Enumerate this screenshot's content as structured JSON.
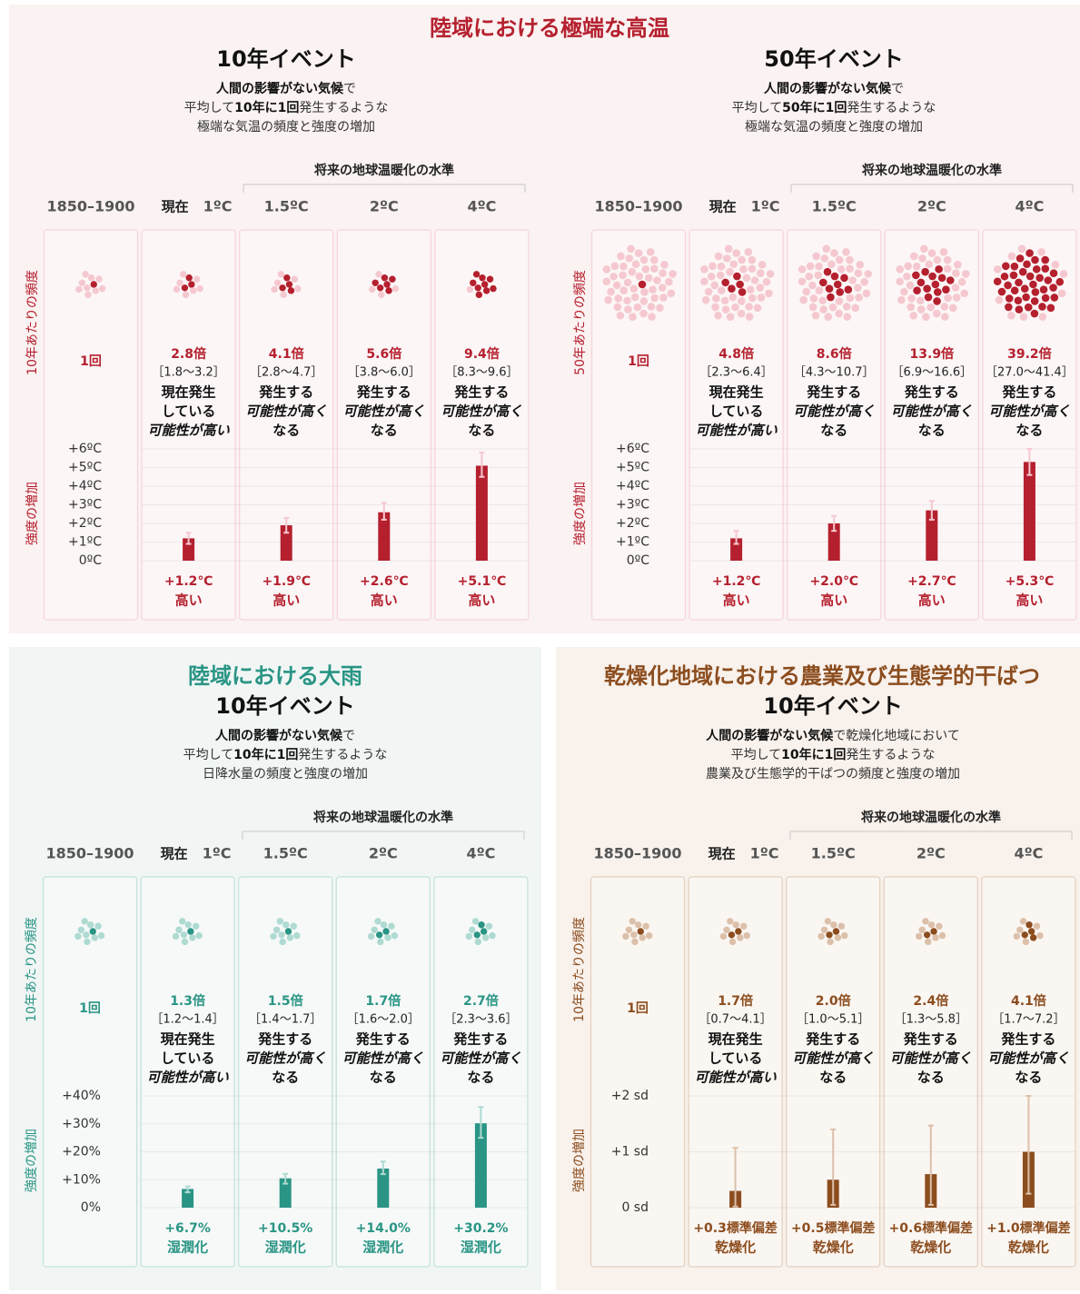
{
  "panels": [
    {
      "title": "陸域における極端な高温",
      "color": "#b5202e",
      "light_color": "#f5c8d0",
      "events": [
        {
          "heading": "10年イベント",
          "description": [
            [
              {
                "text": "人間の影響がない気候",
                "bold": true
              },
              {
                "text": "で"
              }
            ],
            [
              {
                "text": "平均して"
              },
              {
                "text": "10年に1回",
                "bold": true
              },
              {
                "text": "発生するような"
              }
            ],
            [
              {
                "text": "極端な気温の頻度と強度の増加"
              }
            ]
          ],
          "future_label": "将来の地球温暖化の水準",
          "levels": [
            {
              "label": "1850–1900"
            },
            {
              "label": "1ºC",
              "note": "現在"
            },
            {
              "label": "1.5ºC"
            },
            {
              "label": "2ºC"
            },
            {
              "label": "4ºC"
            }
          ],
          "frequency_axis": "10年あたりの頻度",
          "intensity_axis": "強度の増加",
          "frequency": {
            "values": [
              1,
              2.8,
              4.1,
              5.6,
              9.4
            ],
            "value_labels": [
              "1回",
              "2.8倍",
              "4.1倍",
              "5.6倍",
              "9.4倍"
            ]
          },
          "ranges": [
            "［1.8～3.2］",
            "［2.8～4.7］",
            "［3.8～6.0］",
            "［8.3～9.6］"
          ],
          "likelihood": [
            [
              {
                "text": "現在発生"
              },
              {
                "text": "している"
              },
              {
                "text": "可能性が高い",
                "italic": true
              }
            ],
            [
              {
                "text": "発生する"
              },
              {
                "text": "可能性が高く",
                "italic": true
              },
              {
                "text": "なる"
              }
            ],
            [
              {
                "text": "発生する"
              },
              {
                "text": "可能性が高く",
                "italic": true
              },
              {
                "text": "なる"
              }
            ],
            [
              {
                "text": "発生する"
              },
              {
                "text": "可能性が高く",
                "italic": true
              },
              {
                "text": "なる"
              }
            ]
          ],
          "chart": {
            "type": "bar",
            "ylim": [
              0,
              6
            ],
            "yticks": [
              {
                "value": 0,
                "label": "0ºC"
              },
              {
                "value": 1,
                "label": "+1ºC"
              },
              {
                "value": 2,
                "label": "+2ºC"
              },
              {
                "value": 3,
                "label": "+3ºC"
              },
              {
                "value": 4,
                "label": "+4ºC"
              },
              {
                "value": 5,
                "label": "+5ºC"
              },
              {
                "value": 6,
                "label": "+6ºC"
              }
            ],
            "values": [
              1.2,
              1.9,
              2.6,
              5.1
            ],
            "value_labels": [
              "+1.2℃",
              "+1.9℃",
              "+2.6℃",
              "+5.1℃"
            ],
            "errors": [
              [
                0.9,
                1.5
              ],
              [
                1.5,
                2.3
              ],
              [
                2.2,
                3.1
              ],
              [
                4.5,
                5.8
              ]
            ],
            "outcome": "高い"
          }
        },
        {
          "heading": "50年イベント",
          "description": [
            [
              {
                "text": "人間の影響がない気候",
                "bold": true
              },
              {
                "text": "で"
              }
            ],
            [
              {
                "text": "平均して"
              },
              {
                "text": "50年に1回",
                "bold": true
              },
              {
                "text": "発生するような"
              }
            ],
            [
              {
                "text": "極端な気温の頻度と強度の増加"
              }
            ]
          ],
          "future_label": "将来の地球温暖化の水準",
          "levels": [
            {
              "label": "1850–1900"
            },
            {
              "label": "1ºC",
              "note": "現在"
            },
            {
              "label": "1.5ºC"
            },
            {
              "label": "2ºC"
            },
            {
              "label": "4ºC"
            }
          ],
          "frequency_axis": "50年あたりの頻度",
          "intensity_axis": "強度の増加",
          "frequency": {
            "values": [
              1,
              4.8,
              8.6,
              13.9,
              39.2
            ],
            "value_labels": [
              "1回",
              "4.8倍",
              "8.6倍",
              "13.9倍",
              "39.2倍"
            ]
          },
          "ranges": [
            "［2.3～6.4］",
            "［4.3～10.7］",
            "［6.9～16.6］",
            "［27.0～41.4］"
          ],
          "likelihood": [
            [
              {
                "text": "現在発生"
              },
              {
                "text": "している"
              },
              {
                "text": "可能性が高い",
                "italic": true
              }
            ],
            [
              {
                "text": "発生する"
              },
              {
                "text": "可能性が高く",
                "italic": true
              },
              {
                "text": "なる"
              }
            ],
            [
              {
                "text": "発生する"
              },
              {
                "text": "可能性が高く",
                "italic": true
              },
              {
                "text": "なる"
              }
            ],
            [
              {
                "text": "発生する"
              },
              {
                "text": "可能性が高く",
                "italic": true
              },
              {
                "text": "なる"
              }
            ]
          ],
          "chart": {
            "type": "bar",
            "ylim": [
              0,
              6
            ],
            "yticks": [
              {
                "value": 0,
                "label": "0ºC"
              },
              {
                "value": 1,
                "label": "+1ºC"
              },
              {
                "value": 2,
                "label": "+2ºC"
              },
              {
                "value": 3,
                "label": "+3ºC"
              },
              {
                "value": 4,
                "label": "+4ºC"
              },
              {
                "value": 5,
                "label": "+5ºC"
              },
              {
                "value": 6,
                "label": "+6ºC"
              }
            ],
            "values": [
              1.2,
              2.0,
              2.7,
              5.3
            ],
            "value_labels": [
              "+1.2℃",
              "+2.0℃",
              "+2.7℃",
              "+5.3℃"
            ],
            "errors": [
              [
                0.9,
                1.6
              ],
              [
                1.6,
                2.4
              ],
              [
                2.2,
                3.2
              ],
              [
                4.6,
                6.0
              ]
            ],
            "outcome": "高い"
          }
        }
      ]
    },
    {
      "title": "陸域における大雨",
      "color": "#2a9585",
      "light_color": "#aedad2",
      "events": [
        {
          "heading": "10年イベント",
          "description": [
            [
              {
                "text": "人間の影響がない気候",
                "bold": true
              },
              {
                "text": "で"
              }
            ],
            [
              {
                "text": "平均して"
              },
              {
                "text": "10年に1回",
                "bold": true
              },
              {
                "text": "発生するような"
              }
            ],
            [
              {
                "text": "日降水量の頻度と強度の増加"
              }
            ]
          ],
          "future_label": "将来の地球温暖化の水準",
          "levels": [
            {
              "label": "1850–1900"
            },
            {
              "label": "1ºC",
              "note": "現在"
            },
            {
              "label": "1.5ºC"
            },
            {
              "label": "2ºC"
            },
            {
              "label": "4ºC"
            }
          ],
          "frequency_axis": "10年あたりの頻度",
          "intensity_axis": "強度の増加",
          "frequency": {
            "values": [
              1,
              1.3,
              1.5,
              1.7,
              2.7
            ],
            "value_labels": [
              "1回",
              "1.3倍",
              "1.5倍",
              "1.7倍",
              "2.7倍"
            ]
          },
          "ranges": [
            "［1.2～1.4］",
            "［1.4～1.7］",
            "［1.6～2.0］",
            "［2.3～3.6］"
          ],
          "likelihood": [
            [
              {
                "text": "現在発生"
              },
              {
                "text": "している"
              },
              {
                "text": "可能性が高い",
                "italic": true
              }
            ],
            [
              {
                "text": "発生する"
              },
              {
                "text": "可能性が高く",
                "italic": true
              },
              {
                "text": "なる"
              }
            ],
            [
              {
                "text": "発生する"
              },
              {
                "text": "可能性が高く",
                "italic": true
              },
              {
                "text": "なる"
              }
            ],
            [
              {
                "text": "発生する"
              },
              {
                "text": "可能性が高く",
                "italic": true
              },
              {
                "text": "なる"
              }
            ]
          ],
          "chart": {
            "type": "bar",
            "ylim": [
              0,
              40
            ],
            "yticks": [
              {
                "value": 0,
                "label": "0%"
              },
              {
                "value": 10,
                "label": "+10%"
              },
              {
                "value": 20,
                "label": "+20%"
              },
              {
                "value": 30,
                "label": "+30%"
              },
              {
                "value": 40,
                "label": "+40%"
              }
            ],
            "values": [
              6.7,
              10.5,
              14.0,
              30.2
            ],
            "value_labels": [
              "+6.7%",
              "+10.5%",
              "+14.0%",
              "+30.2%"
            ],
            "errors": [
              [
                5.5,
                7.6
              ],
              [
                8.6,
                12.1
              ],
              [
                12.0,
                16.5
              ],
              [
                25.0,
                36.0
              ]
            ],
            "outcome": "湿潤化"
          }
        }
      ]
    },
    {
      "title": "乾燥化地域における農業及び生態学的干ばつ",
      "color": "#8c4d1e",
      "light_color": "#dcc0aa",
      "events": [
        {
          "heading": "10年イベント",
          "description": [
            [
              {
                "text": "人間の影響がない気候",
                "bold": true
              },
              {
                "text": "で乾燥化地域において"
              }
            ],
            [
              {
                "text": "平均して"
              },
              {
                "text": "10年に1回",
                "bold": true
              },
              {
                "text": "発生するような"
              }
            ],
            [
              {
                "text": "農業及び生態学的干ばつの頻度と強度の増加"
              }
            ]
          ],
          "future_label": "将来の地球温暖化の水準",
          "levels": [
            {
              "label": "1850–1900"
            },
            {
              "label": "1ºC",
              "note": "現在"
            },
            {
              "label": "1.5ºC"
            },
            {
              "label": "2ºC"
            },
            {
              "label": "4ºC"
            }
          ],
          "frequency_axis": "10年あたりの頻度",
          "intensity_axis": "強度の増加",
          "frequency": {
            "values": [
              1,
              1.7,
              2.0,
              2.4,
              4.1
            ],
            "value_labels": [
              "1回",
              "1.7倍",
              "2.0倍",
              "2.4倍",
              "4.1倍"
            ]
          },
          "ranges": [
            "［0.7～4.1］",
            "［1.0～5.1］",
            "［1.3～5.8］",
            "［1.7～7.2］"
          ],
          "likelihood": [
            [
              {
                "text": "現在発生"
              },
              {
                "text": "している"
              },
              {
                "text": "可能性が高い",
                "italic": true
              }
            ],
            [
              {
                "text": "発生する"
              },
              {
                "text": "可能性が高く",
                "italic": true
              },
              {
                "text": "なる"
              }
            ],
            [
              {
                "text": "発生する"
              },
              {
                "text": "可能性が高く",
                "italic": true
              },
              {
                "text": "なる"
              }
            ],
            [
              {
                "text": "発生する"
              },
              {
                "text": "可能性が高く",
                "italic": true
              },
              {
                "text": "なる"
              }
            ]
          ],
          "chart": {
            "type": "bar",
            "ylim": [
              0,
              2
            ],
            "yticks": [
              {
                "value": 0,
                "label": "0 sd"
              },
              {
                "value": 1,
                "label": "+1 sd"
              },
              {
                "value": 2,
                "label": "+2 sd"
              }
            ],
            "values": [
              0.3,
              0.5,
              0.6,
              1.0
            ],
            "value_labels": [
              "+0.3標準偏差",
              "+0.5標準偏差",
              "+0.6標準偏差",
              "+1.0標準偏差"
            ],
            "errors": [
              [
                0.02,
                1.07
              ],
              [
                0.05,
                1.4
              ],
              [
                0.05,
                1.47
              ],
              [
                0.25,
                2.0
              ]
            ],
            "outcome": "乾燥化"
          }
        }
      ]
    }
  ]
}
